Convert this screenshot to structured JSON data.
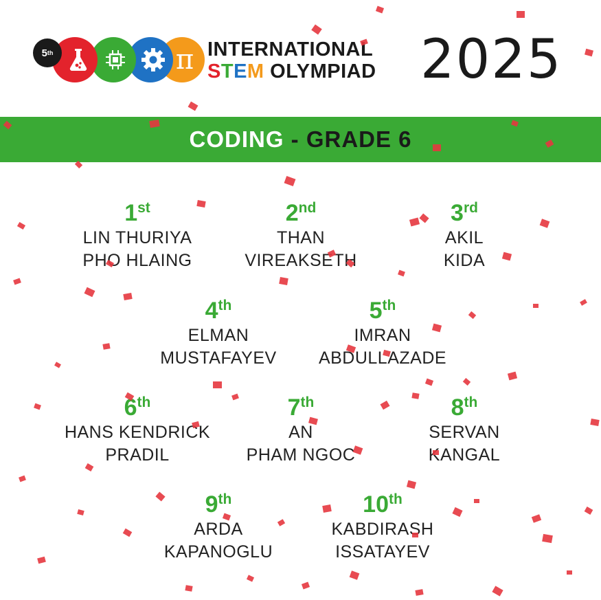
{
  "header": {
    "edition": "5",
    "edition_suffix": "th",
    "title_line1": "INTERNATIONAL",
    "title_s": "S",
    "title_t": "T",
    "title_e": "E",
    "title_m": "M",
    "title_rest": " OLYMPIAD",
    "year": "2025",
    "pi": "π"
  },
  "banner": {
    "subject": "CODING",
    "separator": " - ",
    "grade": "GRADE 6"
  },
  "colors": {
    "green": "#3aaa35",
    "red": "#e3232c",
    "blue": "#1f72c4",
    "orange": "#f49a1b"
  },
  "winners": [
    {
      "num": "1",
      "suffix": "st",
      "line1": "LIN THURIYA",
      "line2": "PHO HLAING"
    },
    {
      "num": "2",
      "suffix": "nd",
      "line1": "THAN",
      "line2": "VIREAKSETH"
    },
    {
      "num": "3",
      "suffix": "rd",
      "line1": "AKIL",
      "line2": "KIDA"
    },
    {
      "num": "4",
      "suffix": "th",
      "line1": "ELMAN",
      "line2": "MUSTAFAYEV"
    },
    {
      "num": "5",
      "suffix": "th",
      "line1": "IMRAN",
      "line2": "ABDULLAZADE"
    },
    {
      "num": "6",
      "suffix": "th",
      "line1": "HANS KENDRICK",
      "line2": "PRADIL"
    },
    {
      "num": "7",
      "suffix": "th",
      "line1": "AN",
      "line2": "PHAM NGOC"
    },
    {
      "num": "8",
      "suffix": "th",
      "line1": "SERVAN",
      "line2": "KANGAL"
    },
    {
      "num": "9",
      "suffix": "th",
      "line1": "ARDA",
      "line2": "KAPANOGLU"
    },
    {
      "num": "10",
      "suffix": "th",
      "line1": "KABDIRASH",
      "line2": "ISSATAYEV"
    }
  ]
}
